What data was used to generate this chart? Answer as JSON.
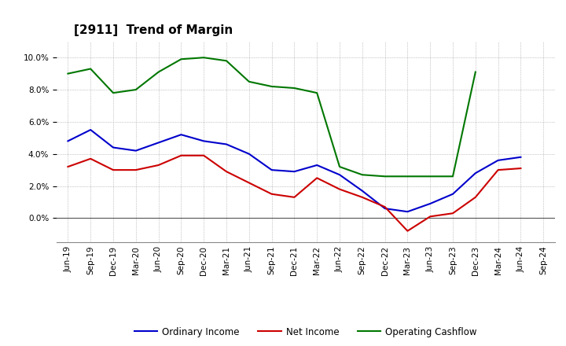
{
  "title": "[2911]  Trend of Margin",
  "x_labels": [
    "Jun-19",
    "Sep-19",
    "Dec-19",
    "Mar-20",
    "Jun-20",
    "Sep-20",
    "Dec-20",
    "Mar-21",
    "Jun-21",
    "Sep-21",
    "Dec-21",
    "Mar-22",
    "Jun-22",
    "Sep-22",
    "Dec-22",
    "Mar-23",
    "Jun-23",
    "Sep-23",
    "Dec-23",
    "Mar-24",
    "Jun-24",
    "Sep-24"
  ],
  "ordinary_income": [
    4.8,
    5.5,
    4.4,
    4.2,
    4.7,
    5.2,
    4.8,
    4.6,
    4.0,
    3.0,
    2.9,
    3.3,
    2.7,
    1.7,
    0.6,
    0.4,
    0.9,
    1.5,
    2.8,
    3.6,
    3.8,
    null
  ],
  "net_income": [
    3.2,
    3.7,
    3.0,
    3.0,
    3.3,
    3.9,
    3.9,
    2.9,
    2.2,
    1.5,
    1.3,
    2.5,
    1.8,
    1.3,
    0.7,
    -0.8,
    0.1,
    0.3,
    1.3,
    3.0,
    3.1,
    null
  ],
  "operating_cashflow": [
    9.0,
    9.3,
    7.8,
    8.0,
    9.1,
    9.9,
    10.0,
    9.8,
    8.5,
    8.2,
    8.1,
    7.8,
    3.2,
    2.7,
    2.6,
    2.6,
    2.6,
    2.6,
    9.1,
    null,
    null,
    null
  ],
  "ylim": [
    -1.5,
    11.0
  ],
  "yticks": [
    0.0,
    2.0,
    4.0,
    6.0,
    8.0,
    10.0
  ],
  "line_colors": {
    "ordinary_income": "#0000cc",
    "net_income": "#cc0000",
    "operating_cashflow": "#007700"
  },
  "legend_labels": [
    "Ordinary Income",
    "Net Income",
    "Operating Cashflow"
  ],
  "bg_color": "#ffffff",
  "grid_color": "#999999",
  "title_fontsize": 11,
  "label_fontsize": 8.5,
  "tick_fontsize": 7.5
}
